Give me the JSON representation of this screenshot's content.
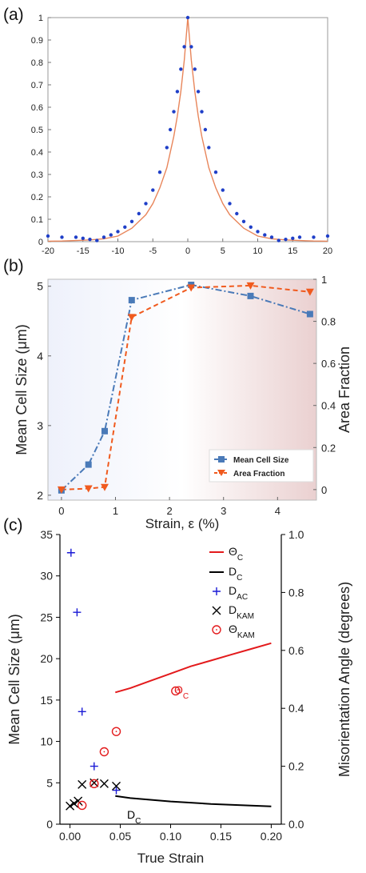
{
  "chart_data": [
    {
      "panel": "(a)",
      "type": "line",
      "xlim": [
        -20,
        20
      ],
      "ylim": [
        0,
        1
      ],
      "xticks": [
        -20,
        -15,
        -10,
        -5,
        0,
        5,
        10,
        15,
        20
      ],
      "yticks": [
        0,
        0.1,
        0.2,
        0.3,
        0.4,
        0.5,
        0.6,
        0.7,
        0.8,
        0.9,
        1
      ],
      "grid": false,
      "series": [
        {
          "style": "dots",
          "color": "#1f3fc8",
          "x": [
            -20,
            -18,
            -16,
            -15,
            -14,
            -13,
            -12,
            -11,
            -10,
            -9,
            -8,
            -7,
            -6,
            -5,
            -4,
            -3,
            -2.5,
            -2,
            -1.5,
            -1,
            -0.5,
            0,
            0.5,
            1,
            1.5,
            2,
            2.5,
            3,
            4,
            5,
            6,
            7,
            8,
            9,
            10,
            11,
            12,
            13,
            14,
            15,
            16,
            18,
            20
          ],
          "y": [
            0.025,
            0.02,
            0.02,
            0.015,
            0.01,
            0.005,
            0.02,
            0.03,
            0.045,
            0.065,
            0.09,
            0.125,
            0.17,
            0.23,
            0.31,
            0.42,
            0.5,
            0.58,
            0.67,
            0.77,
            0.87,
            1.0,
            0.87,
            0.77,
            0.67,
            0.58,
            0.5,
            0.42,
            0.31,
            0.23,
            0.17,
            0.125,
            0.09,
            0.065,
            0.045,
            0.03,
            0.02,
            0.005,
            0.01,
            0.015,
            0.02,
            0.02,
            0.025
          ]
        },
        {
          "style": "line",
          "color": "#e8855a",
          "x": [
            -20,
            -18,
            -16,
            -14,
            -12,
            -10,
            -8,
            -6,
            -5,
            -4,
            -3,
            -2,
            -1.5,
            -1,
            -0.5,
            0,
            0.5,
            1,
            1.5,
            2,
            3,
            4,
            5,
            6,
            8,
            10,
            12,
            14,
            16,
            18,
            20
          ],
          "y": [
            0.002,
            0.003,
            0.005,
            0.008,
            0.013,
            0.025,
            0.06,
            0.12,
            0.17,
            0.24,
            0.33,
            0.47,
            0.56,
            0.67,
            0.81,
            1.0,
            0.81,
            0.67,
            0.56,
            0.47,
            0.33,
            0.24,
            0.17,
            0.12,
            0.06,
            0.025,
            0.013,
            0.008,
            0.005,
            0.003,
            0.002
          ]
        }
      ]
    },
    {
      "panel": "(b)",
      "type": "line",
      "xlabel": "Strain, ε (%)",
      "ylabel_left": "Mean Cell Size (μm)",
      "ylabel_right": "Area Fraction",
      "xlim": [
        -0.25,
        4.72
      ],
      "ylim_left": [
        1.93,
        5.1
      ],
      "ylim_right": [
        -0.05,
        1.0
      ],
      "xticks": [
        0,
        1,
        2,
        3,
        4
      ],
      "yticks_left": [
        2,
        3,
        4,
        5
      ],
      "yticks_right": [
        0,
        0.2,
        0.4,
        0.6,
        0.8,
        1
      ],
      "legend_position": "bottom-right",
      "series": [
        {
          "name": "Mean Cell Size",
          "axis": "left",
          "color": "#4a7ab8",
          "marker": "square",
          "linestyle": "dash-dot",
          "x": [
            0,
            0.5,
            0.8,
            1.3,
            2.4,
            3.5,
            4.6
          ],
          "y": [
            2.07,
            2.44,
            2.92,
            4.8,
            5.02,
            4.86,
            4.6
          ]
        },
        {
          "name": "Area Fraction",
          "axis": "right",
          "color": "#f05a1e",
          "marker": "triangle-down",
          "linestyle": "dashed",
          "x": [
            0,
            0.5,
            0.8,
            1.3,
            2.4,
            3.5,
            4.6
          ],
          "y": [
            0.0,
            0.005,
            0.012,
            0.82,
            0.96,
            0.97,
            0.94
          ]
        }
      ]
    },
    {
      "panel": "(c)",
      "type": "scatter",
      "xlabel": "True Strain",
      "ylabel_left": "Mean Cell Size (μm)",
      "ylabel_right": "Misorientation Angle (degrees)",
      "xlim": [
        -0.01,
        0.21
      ],
      "ylim_left": [
        0,
        35
      ],
      "ylim_right": [
        0,
        1.0
      ],
      "xticks": [
        0.0,
        0.05,
        0.1,
        0.15,
        0.2
      ],
      "xtick_labels": [
        "0.00",
        "0.05",
        "0.10",
        "0.15",
        "0.20"
      ],
      "yticks_left": [
        0,
        5,
        10,
        15,
        20,
        25,
        30,
        35
      ],
      "yticks_right": [
        0.0,
        0.2,
        0.4,
        0.6,
        0.8,
        1.0
      ],
      "legend_position": "top-right",
      "legend": [
        {
          "base": "Θ",
          "sub": "C",
          "color": "#e31a1c",
          "marker": "line"
        },
        {
          "base": "D",
          "sub": "C",
          "color": "#000000",
          "marker": "line"
        },
        {
          "base": "D",
          "sub": "AC",
          "color": "#1a1ad6",
          "marker": "plus"
        },
        {
          "base": "D",
          "sub": "KAM",
          "color": "#000000",
          "marker": "x"
        },
        {
          "base": "Θ",
          "sub": "KAM",
          "color": "#e31a1c",
          "marker": "circle"
        }
      ],
      "series": [
        {
          "label": "Θ_C",
          "axis": "right",
          "color": "#e31a1c",
          "style": "line",
          "x": [
            0.045,
            0.06,
            0.08,
            0.1,
            0.12,
            0.14,
            0.16,
            0.18,
            0.2
          ],
          "y": [
            0.455,
            0.47,
            0.495,
            0.52,
            0.545,
            0.565,
            0.585,
            0.605,
            0.625
          ]
        },
        {
          "label": "D_C",
          "axis": "left",
          "color": "#000000",
          "style": "line",
          "x": [
            0.045,
            0.06,
            0.08,
            0.1,
            0.12,
            0.14,
            0.16,
            0.18,
            0.2
          ],
          "y": [
            3.4,
            3.15,
            2.95,
            2.75,
            2.6,
            2.45,
            2.35,
            2.25,
            2.15
          ]
        },
        {
          "label": "D_AC",
          "axis": "left",
          "color": "#1a1ad6",
          "marker": "plus",
          "x": [
            0.001,
            0.007,
            0.012,
            0.024,
            0.046
          ],
          "y": [
            32.8,
            25.6,
            13.6,
            7.0,
            4.1
          ]
        },
        {
          "label": "D_KAM",
          "axis": "left",
          "color": "#000000",
          "marker": "x",
          "x": [
            0.0,
            0.004,
            0.008,
            0.012,
            0.024,
            0.034,
            0.046
          ],
          "y": [
            2.2,
            2.5,
            2.8,
            4.8,
            5.0,
            4.9,
            4.6
          ]
        },
        {
          "label": "Θ_KAM",
          "axis": "right",
          "color": "#e31a1c",
          "marker": "circle",
          "x": [
            0.012,
            0.024,
            0.034,
            0.046,
            0.105
          ],
          "y": [
            0.065,
            0.14,
            0.25,
            0.32,
            0.46
          ]
        }
      ],
      "annotations": [
        {
          "base": "Θ",
          "sub": "C",
          "color": "#e31a1c"
        },
        {
          "base": "D",
          "sub": "C",
          "color": "#000000"
        }
      ]
    }
  ],
  "labels": {
    "panel_a": "(a)",
    "panel_b": "(b)",
    "panel_c": "(c)"
  }
}
